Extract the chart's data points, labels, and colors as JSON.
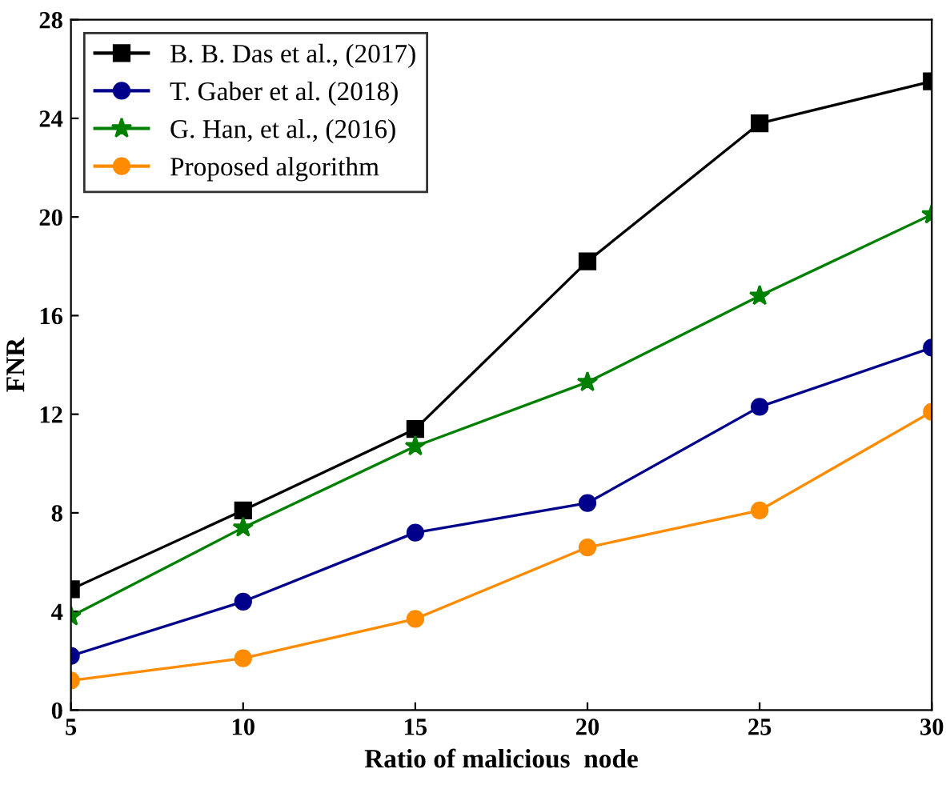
{
  "chart_data": {
    "type": "line",
    "xlabel": "Ratio of malicious  node",
    "ylabel": "FNR",
    "x": [
      5,
      10,
      15,
      20,
      25,
      30
    ],
    "xlim": [
      5,
      30
    ],
    "xticks": [
      5,
      10,
      15,
      20,
      25,
      30
    ],
    "ylim": [
      0,
      28
    ],
    "yticks": [
      0,
      4,
      8,
      12,
      16,
      20,
      24,
      28
    ],
    "grid": false,
    "legend": "top left",
    "line_style": "solid",
    "series": [
      {
        "name": "B. B. Das et al., (2017)",
        "color": "#000000",
        "marker": "square",
        "values": [
          4.9,
          8.1,
          11.4,
          18.2,
          23.8,
          25.5
        ]
      },
      {
        "name": "T. Gaber et al. (2018)",
        "color": "#00008b",
        "marker": "circle",
        "values": [
          2.2,
          4.4,
          7.2,
          8.4,
          12.3,
          14.7
        ]
      },
      {
        "name": "G. Han, et al., (2016)",
        "color": "#008000",
        "marker": "star",
        "values": [
          3.8,
          7.4,
          10.7,
          13.3,
          16.8,
          20.1
        ]
      },
      {
        "name": "Proposed algorithm",
        "color": "#ff8c00",
        "marker": "circle",
        "values": [
          1.2,
          2.1,
          3.7,
          6.6,
          8.1,
          12.1
        ]
      }
    ]
  }
}
